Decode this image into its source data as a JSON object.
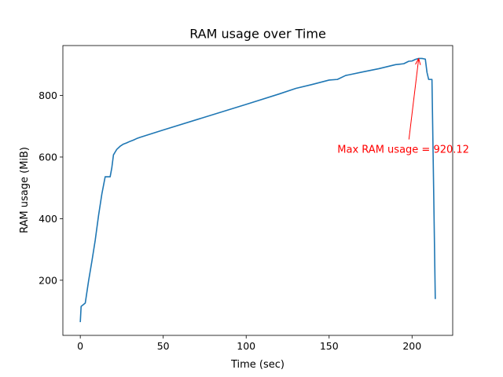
{
  "chart_data": {
    "type": "line",
    "title": "RAM usage over Time",
    "xlabel": "Time (sec)",
    "ylabel": "RAM usage (MiB)",
    "xlim": [
      -10.5,
      224.5
    ],
    "ylim": [
      21,
      962
    ],
    "x_ticks": [
      0,
      50,
      100,
      150,
      200
    ],
    "y_ticks": [
      200,
      400,
      600,
      800
    ],
    "grid": false,
    "legend": "none",
    "line_color": "#1f77b4",
    "annotation_color": "#ff0000",
    "series": [
      {
        "x": [
          0,
          0.5,
          3,
          5,
          7,
          9,
          11,
          13,
          15,
          16,
          18,
          19,
          20,
          22,
          24,
          26,
          28,
          30,
          32,
          34,
          36,
          50,
          100,
          120,
          130,
          140,
          150,
          155,
          160,
          162,
          170,
          180,
          190,
          195,
          198,
          200,
          202,
          204,
          206,
          208,
          209,
          210,
          212,
          213,
          214
        ],
        "y": [
          64,
          115,
          126,
          198,
          262,
          330,
          410,
          480,
          536,
          536,
          536,
          565,
          607,
          625,
          635,
          642,
          646,
          651,
          655,
          660,
          664,
          688,
          771,
          805,
          823,
          836,
          850,
          852,
          865,
          867,
          876,
          887,
          900,
          903,
          911,
          912,
          917,
          920.12,
          920.12,
          918,
          875,
          852,
          852,
          500,
          139
        ]
      }
    ],
    "annotations": [
      {
        "text": "Max RAM usage = 920.12",
        "xy": [
          204,
          920.12
        ],
        "xytext": [
          155,
          624
        ]
      }
    ]
  }
}
